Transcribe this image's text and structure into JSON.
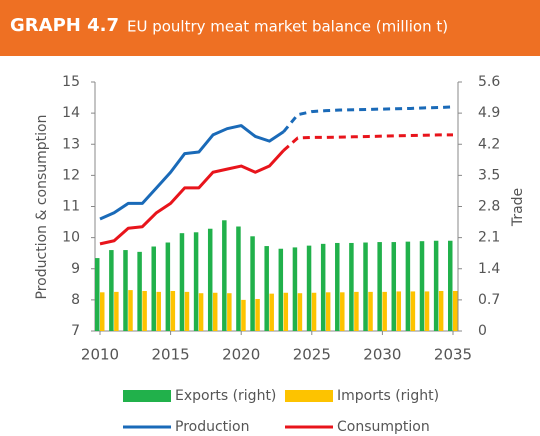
{
  "chart_data": {
    "type": "bar",
    "label": "GRAPH 4.7",
    "title": "EU poultry meat market balance (million t)",
    "y_label": "Production & consumption",
    "y2_label": "Trade",
    "x": [
      2010,
      2011,
      2012,
      2013,
      2014,
      2015,
      2016,
      2017,
      2018,
      2019,
      2020,
      2021,
      2022,
      2023,
      2024,
      2025,
      2026,
      2027,
      2028,
      2029,
      2030,
      2031,
      2032,
      2033,
      2034,
      2035
    ],
    "xlim": [
      2010,
      2035
    ],
    "xticks": [
      2010,
      2015,
      2020,
      2025,
      2030,
      2035
    ],
    "ylim": [
      7,
      15
    ],
    "yticks": [
      7,
      8,
      9,
      10,
      11,
      12,
      13,
      14,
      15
    ],
    "y2lim": [
      0,
      5.6
    ],
    "y2ticks": [
      0,
      0.7,
      1.4,
      2.1,
      2.8,
      3.5,
      4.2,
      4.9,
      5.6
    ],
    "grid": false,
    "projection_from": 2023,
    "series": [
      {
        "name": "Exports (right)",
        "type": "bar",
        "axis": "y2",
        "color": "#21b14b",
        "values": [
          1.64,
          1.82,
          1.82,
          1.78,
          1.9,
          1.99,
          2.2,
          2.22,
          2.3,
          2.49,
          2.35,
          2.13,
          1.91,
          1.85,
          1.88,
          1.92,
          1.96,
          1.98,
          1.98,
          1.99,
          2.0,
          2.0,
          2.01,
          2.02,
          2.03,
          2.03
        ]
      },
      {
        "name": "Imports (right)",
        "type": "bar",
        "axis": "y2",
        "color": "#fdc300",
        "values": [
          0.87,
          0.88,
          0.92,
          0.9,
          0.88,
          0.9,
          0.88,
          0.85,
          0.86,
          0.85,
          0.7,
          0.72,
          0.84,
          0.86,
          0.85,
          0.86,
          0.87,
          0.87,
          0.88,
          0.88,
          0.88,
          0.89,
          0.89,
          0.89,
          0.9,
          0.9
        ]
      },
      {
        "name": "Production",
        "type": "line",
        "color": "#1a6ab8",
        "values": [
          10.6,
          10.8,
          11.1,
          11.1,
          11.6,
          12.1,
          12.7,
          12.75,
          13.3,
          13.5,
          13.6,
          13.25,
          13.1,
          13.4,
          13.95,
          14.05,
          14.08,
          14.1,
          14.11,
          14.12,
          14.13,
          14.14,
          14.15,
          14.17,
          14.18,
          14.2
        ]
      },
      {
        "name": "Consumption",
        "type": "line",
        "color": "#e8141b",
        "values": [
          9.8,
          9.9,
          10.3,
          10.35,
          10.8,
          11.1,
          11.6,
          11.6,
          12.1,
          12.2,
          12.3,
          12.1,
          12.3,
          12.8,
          13.2,
          13.22,
          13.22,
          13.23,
          13.24,
          13.25,
          13.26,
          13.27,
          13.28,
          13.29,
          13.3,
          13.3
        ]
      }
    ]
  }
}
